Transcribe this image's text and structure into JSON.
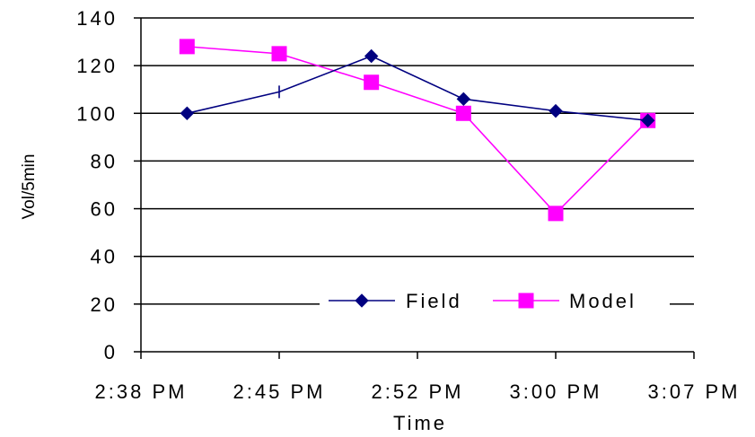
{
  "chart_data": {
    "type": "line",
    "title": "",
    "xlabel": "Time",
    "ylabel": "Vol/5min",
    "x_tick_labels": [
      "2:38 PM",
      "2:45 PM",
      "2:52 PM",
      "3:00 PM",
      "3:07 PM"
    ],
    "y_tick_labels": [
      "0",
      "20",
      "40",
      "60",
      "80",
      "100",
      "120",
      "140"
    ],
    "ylim": [
      0,
      140
    ],
    "y_step": 20,
    "grid": "horizontal",
    "legend_position": "lower-right, inside plot",
    "x": [
      "2:41 PM",
      "2:46 PM",
      "2:51 PM",
      "2:56 PM",
      "3:01 PM",
      "3:06 PM"
    ],
    "series": [
      {
        "name": "Field",
        "color": "#000080",
        "marker": "diamond",
        "values": [
          100,
          109,
          124,
          106,
          101,
          97
        ]
      },
      {
        "name": "Model",
        "color": "#FF00FF",
        "marker": "square",
        "values": [
          128,
          125,
          113,
          100,
          58,
          97
        ]
      }
    ]
  }
}
